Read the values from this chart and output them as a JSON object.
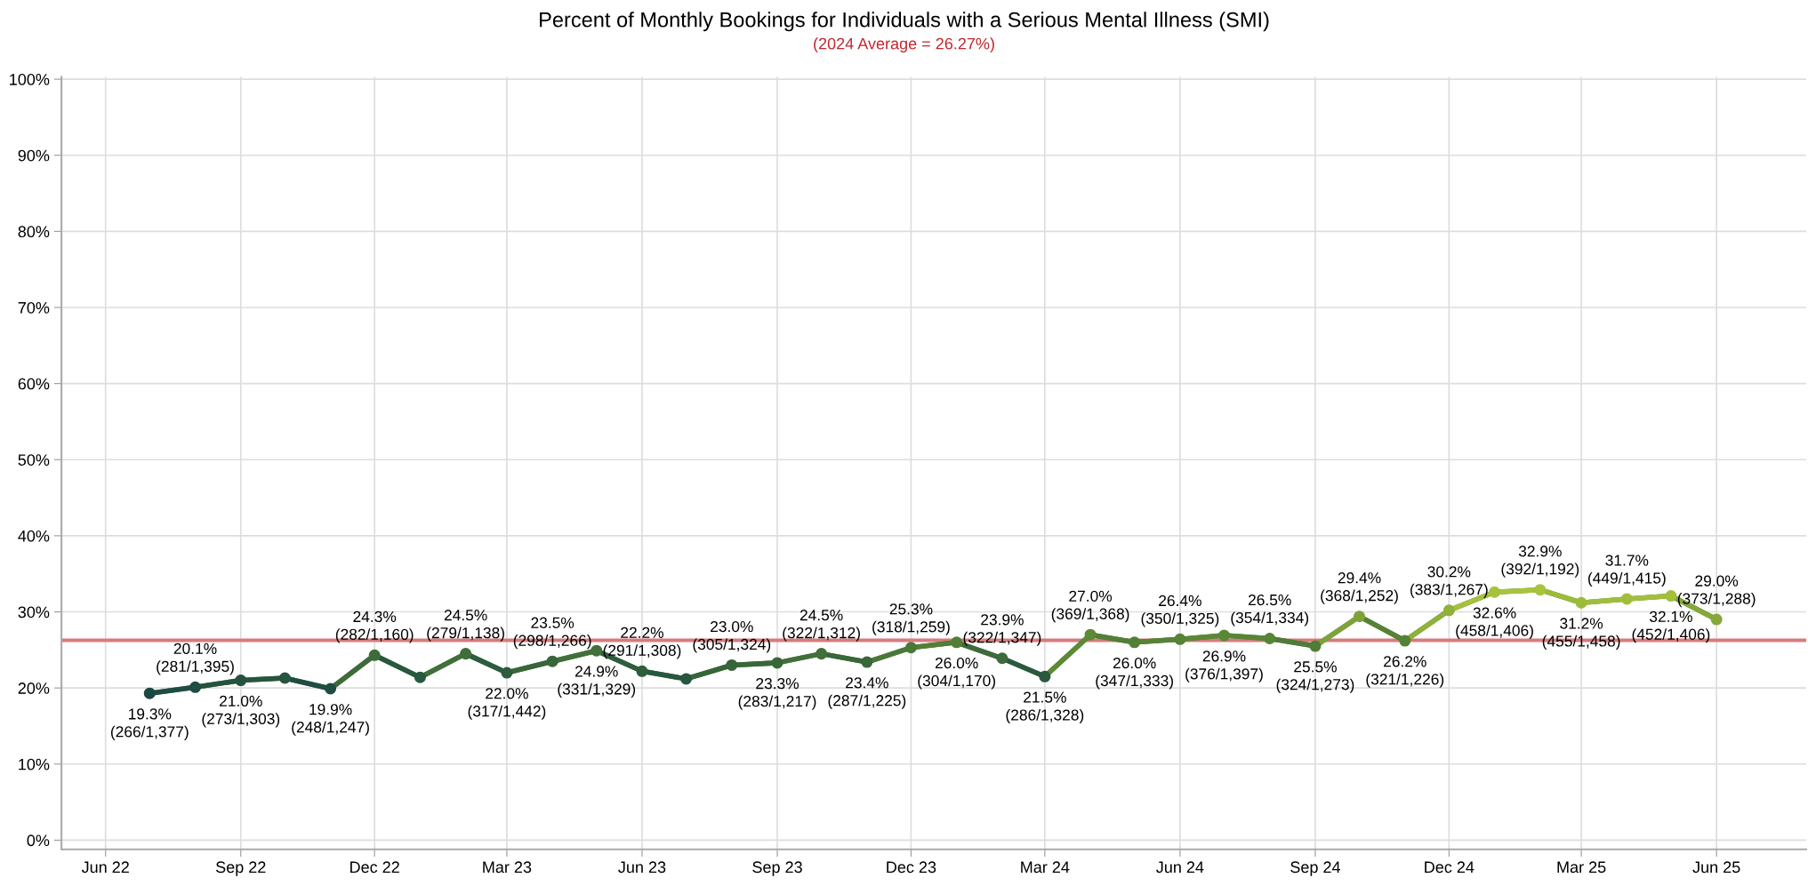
{
  "chart_data": {
    "type": "line",
    "title": "Percent of Monthly Bookings for Individuals with a Serious Mental Illness (SMI)",
    "subtitle": "(2024 Average = 26.27%)",
    "x": [
      "2022-07",
      "2022-08",
      "2022-09",
      "2022-10",
      "2022-11",
      "2022-12",
      "2023-01",
      "2023-02",
      "2023-03",
      "2023-04",
      "2023-05",
      "2023-06",
      "2023-07",
      "2023-08",
      "2023-09",
      "2023-10",
      "2023-11",
      "2023-12",
      "2024-01",
      "2024-02",
      "2024-03",
      "2024-04",
      "2024-05",
      "2024-06",
      "2024-07",
      "2024-08",
      "2024-09",
      "2024-10",
      "2024-11",
      "2024-12",
      "2025-01",
      "2025-02",
      "2025-03",
      "2025-04",
      "2025-05",
      "2025-06"
    ],
    "series": [
      {
        "color": "#4a7838",
        "values": [
          19.3,
          20.1,
          21.0,
          21.3,
          19.9,
          24.3,
          21.4,
          24.5,
          22.0,
          23.5,
          24.9,
          22.2,
          21.2,
          23.0,
          23.3,
          24.5,
          23.4,
          25.3,
          26.0,
          23.9,
          21.5,
          27.0,
          26.0,
          26.4,
          26.9,
          26.5,
          25.5,
          29.4,
          26.2,
          30.2,
          32.6,
          32.9,
          31.2,
          31.7,
          32.1,
          29.0
        ],
        "colors": [
          "#1b4844",
          "#1f4c43",
          "#24523f",
          "#27553f",
          "#1f4c43",
          "#3e6b3b",
          "#28583f",
          "#416e3b",
          "#2d5c3e",
          "#386639",
          "#426f3a",
          "#2f5e3e",
          "#28573f",
          "#366539",
          "#386739",
          "#426f3a",
          "#386739",
          "#4a7838",
          "#527f37",
          "#3e6b3b",
          "#29593f",
          "#5d8a35",
          "#527f37",
          "#568336",
          "#5b8835",
          "#578536",
          "#4f7c38",
          "#7fa23a",
          "#558236",
          "#90b13a",
          "#a6c23c",
          "#a8c43c",
          "#9cbb3b",
          "#a0be3b",
          "#a3c03c",
          "#86a73a"
        ],
        "value_labels": [
          "19.3%\n(266/1,377)",
          "20.1%\n(281/1,395)",
          "21.0%\n(273/1,303)",
          null,
          "19.9%\n(248/1,247)",
          "24.3%\n(282/1,160)",
          null,
          "24.5%\n(279/1,138)",
          "22.0%\n(317/1,442)",
          "23.5%\n(298/1,266)",
          "24.9%\n(331/1,329)",
          "22.2%\n(291/1,308)",
          null,
          "23.0%\n(305/1,324)",
          "23.3%\n(283/1,217)",
          "24.5%\n(322/1,312)",
          "23.4%\n(287/1,225)",
          "25.3%\n(318/1,259)",
          "26.0%\n(304/1,170)",
          "23.9%\n(322/1,347)",
          "21.5%\n(286/1,328)",
          "27.0%\n(369/1,368)",
          "26.0%\n(347/1,333)",
          "26.4%\n(350/1,325)",
          "26.9%\n(376/1,397)",
          "26.5%\n(354/1,334)",
          "25.5%\n(324/1,273)",
          "29.4%\n(368/1,252)",
          "26.2%\n(321/1,226)",
          "30.2%\n(383/1,267)",
          "32.6%\n(458/1,406)",
          "32.9%\n(392/1,192)",
          "31.2%\n(455/1,458)",
          "31.7%\n(449/1,415)",
          "32.1%\n(452/1,406)",
          "29.0%\n(373/1,288)"
        ]
      }
    ],
    "ref_lines": [
      {
        "axis": "y",
        "value": 26.27,
        "color": "#d97a7c"
      }
    ],
    "xlim": [
      "2022-05-02",
      "2025-08-01"
    ],
    "xticks": [
      {
        "value": "2022-06",
        "label": "Jun 22"
      },
      {
        "value": "2022-09",
        "label": "Sep 22"
      },
      {
        "value": "2022-12",
        "label": "Dec 22"
      },
      {
        "value": "2023-03",
        "label": "Mar 23"
      },
      {
        "value": "2023-06",
        "label": "Jun 23"
      },
      {
        "value": "2023-09",
        "label": "Sep 23"
      },
      {
        "value": "2023-12",
        "label": "Dec 23"
      },
      {
        "value": "2024-03",
        "label": "Mar 24"
      },
      {
        "value": "2024-06",
        "label": "Jun 24"
      },
      {
        "value": "2024-09",
        "label": "Sep 24"
      },
      {
        "value": "2024-12",
        "label": "Dec 24"
      },
      {
        "value": "2025-03",
        "label": "Mar 25"
      },
      {
        "value": "2025-06",
        "label": "Jun 25"
      }
    ],
    "ylim": [
      -1.2,
      100.3
    ],
    "yticks": [
      {
        "value": 0,
        "label": "0%"
      },
      {
        "value": 10,
        "label": "10%"
      },
      {
        "value": 20,
        "label": "20%"
      },
      {
        "value": 30,
        "label": "30%"
      },
      {
        "value": 40,
        "label": "40%"
      },
      {
        "value": 50,
        "label": "50%"
      },
      {
        "value": 60,
        "label": "60%"
      },
      {
        "value": 70,
        "label": "70%"
      },
      {
        "value": 80,
        "label": "80%"
      },
      {
        "value": 90,
        "label": "90%"
      },
      {
        "value": 100,
        "label": "100%"
      }
    ],
    "grid": true,
    "marker": "circle",
    "line_style": "solid",
    "legend": false
  }
}
